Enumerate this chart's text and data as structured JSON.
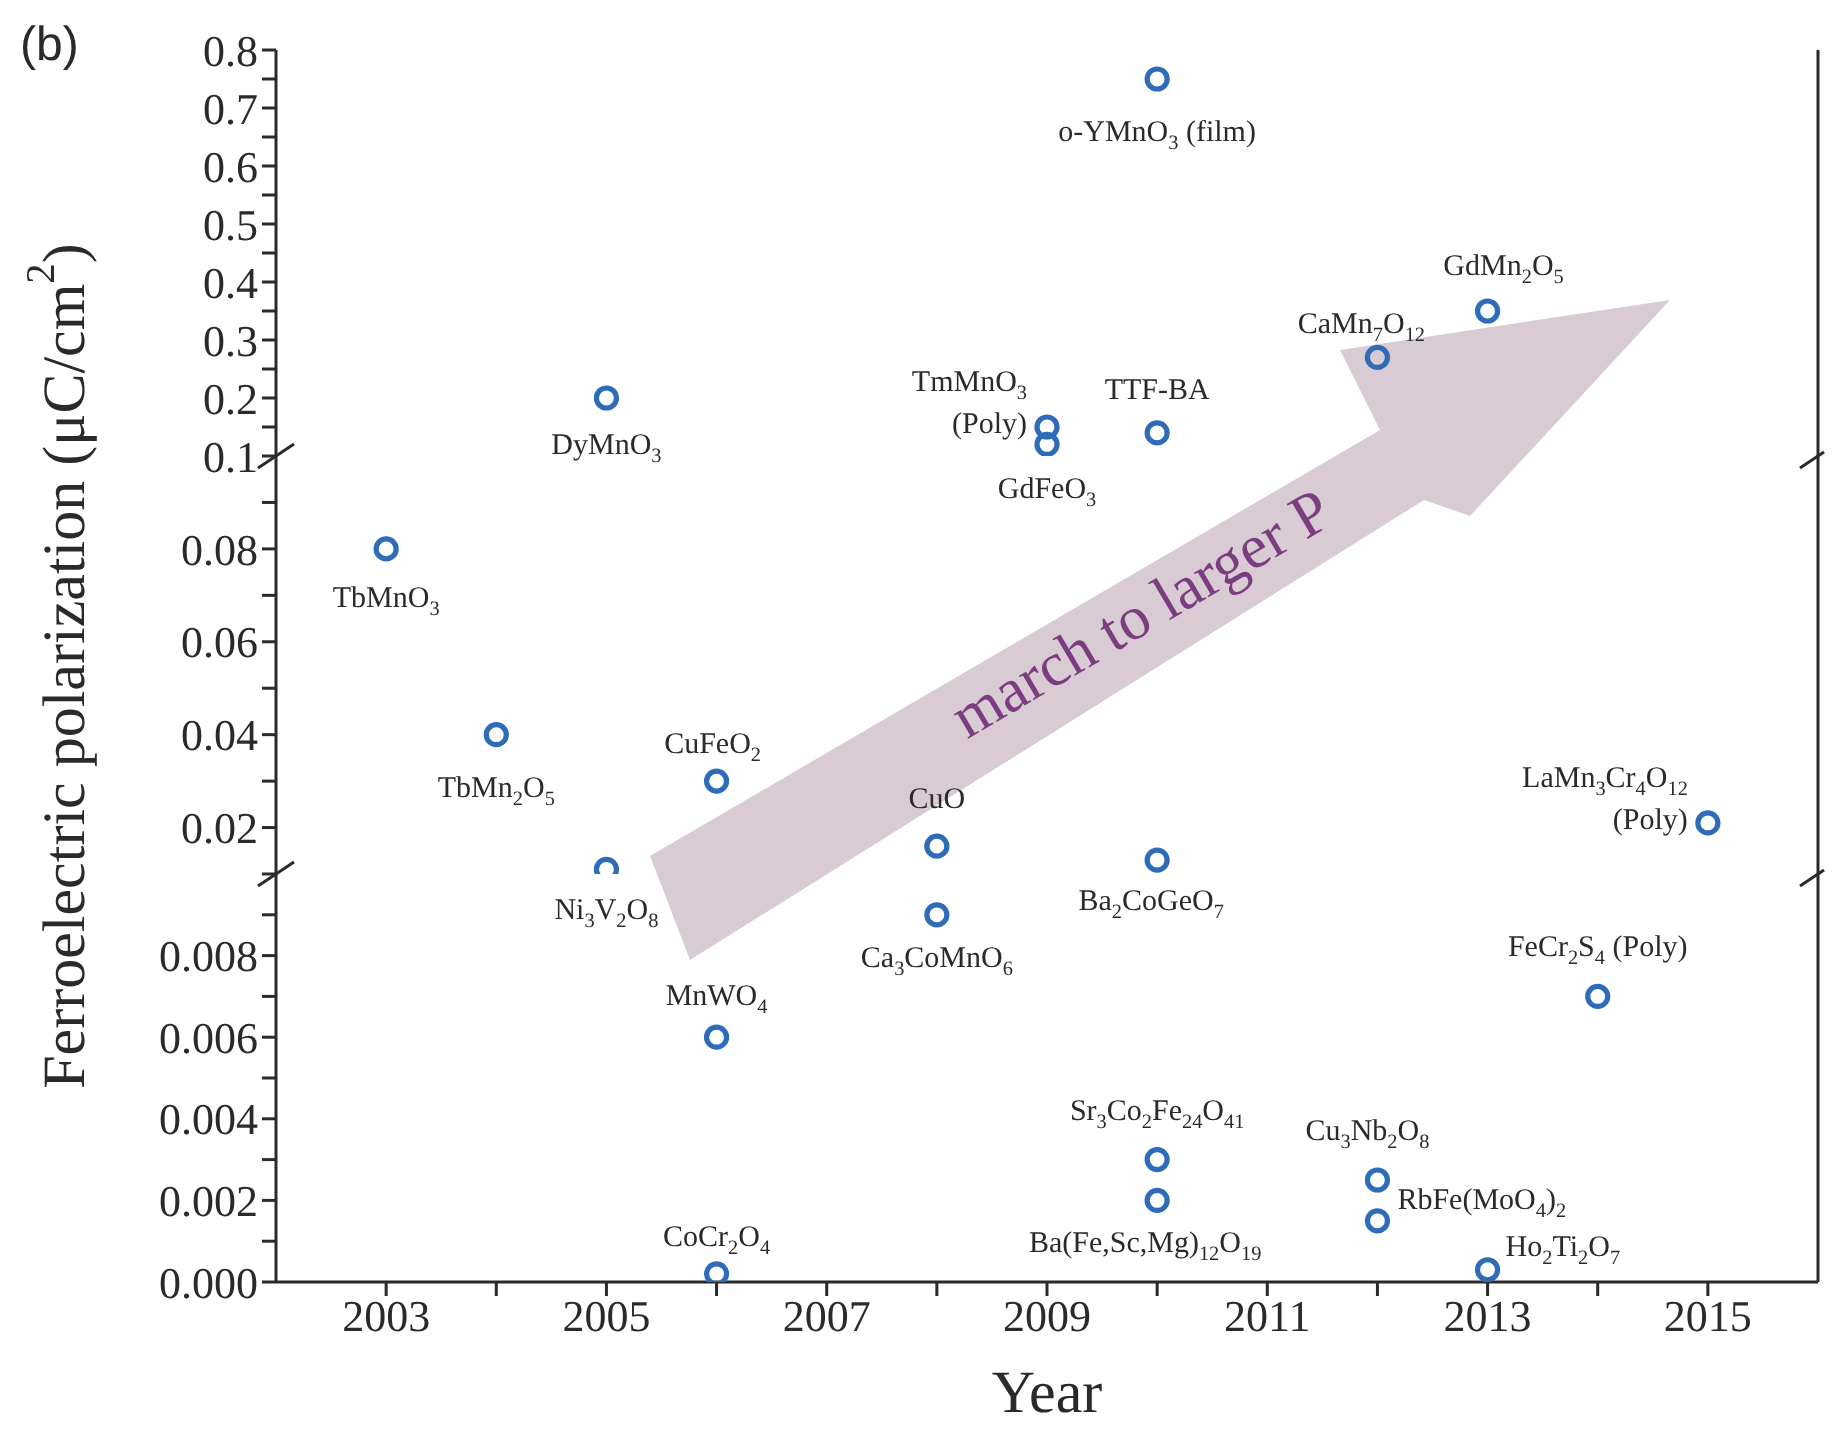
{
  "chart_data": [
    {
      "type": "scatter",
      "x": [
        2005,
        2009,
        2009,
        2010,
        2010,
        2012,
        2013
      ],
      "values": [
        0.2,
        0.15,
        0.12,
        0.75,
        0.14,
        0.27,
        0.35
      ],
      "color": "#2e6bb8",
      "marker": "circle",
      "xlim": [
        2002,
        2016
      ],
      "ylim": [
        0.1,
        0.8
      ],
      "yticks": [
        0.1,
        {
          "value": 0.15,
          "label": null
        },
        0.2,
        {
          "value": 0.25,
          "label": null
        },
        0.3,
        {
          "value": 0.35,
          "label": null
        },
        0.4,
        {
          "value": 0.45,
          "label": null
        },
        0.5,
        {
          "value": 0.55,
          "label": null
        },
        0.6,
        {
          "value": 0.65,
          "label": null
        },
        0.7,
        {
          "value": 0.75,
          "label": null
        },
        0.8
      ],
      "tick_labels": "y",
      "annotations": [
        "(b)",
        "march to larger P",
        {
          "text": "o-YMnO$_{3}$ (film)",
          "x": 2010,
          "y": 0.75
        },
        {
          "text": "DyMnO$_{3}$",
          "x": 2005,
          "y": 0.2
        },
        {
          "text": "TmMnO$_{3}$ (Poly)",
          "x": 2009,
          "y": 0.15
        },
        {
          "text": "GdFeO$_{3}$",
          "x": 2009,
          "y": 0.12
        },
        {
          "text": "TTF-BA",
          "x": 2010,
          "y": 0.14
        },
        {
          "text": "CaMn$_{7}$O$_{12}$",
          "x": 2012,
          "y": 0.27
        },
        {
          "text": "GdMn$_{2}$O$_{5}$",
          "x": 2013,
          "y": 0.35
        }
      ]
    },
    {
      "type": "scatter",
      "x": [
        2003,
        2004,
        2006,
        2005,
        2008,
        2010,
        2015
      ],
      "values": [
        0.08,
        0.04,
        0.03,
        0.011,
        0.016,
        0.013,
        0.021
      ],
      "color": "#2e6bb8",
      "marker": "circle",
      "xlim": [
        2002,
        2016
      ],
      "ylim": [
        0.01,
        0.1
      ],
      "yticks": [
        {
          "value": 0.01,
          "label": null
        },
        0.02,
        {
          "value": 0.03,
          "label": null
        },
        0.04,
        {
          "value": 0.05,
          "label": null
        },
        0.06,
        {
          "value": 0.07,
          "label": null
        },
        0.08,
        {
          "value": 0.09,
          "label": null
        }
      ],
      "tick_labels": "y",
      "ylabel": "Ferroelectric polarization (μC/cm$^{2}$)",
      "annotations": [
        {
          "text": "TbMnO$_{3}$",
          "x": 2003,
          "y": 0.08
        },
        {
          "text": "TbMn$_{2}$O$_{5}$",
          "x": 2004,
          "y": 0.04
        },
        {
          "text": "CuFeO$_{2}$",
          "x": 2006,
          "y": 0.03
        },
        {
          "text": "Ni$_{3}$V$_{2}$O$_{8}$",
          "x": 2005,
          "y": 0.011
        },
        {
          "text": "CuO",
          "x": 2008,
          "y": 0.016
        },
        {
          "text": "Ba$_{2}$CoGeO$_{7}$",
          "x": 2010,
          "y": 0.013
        },
        {
          "text": "LaMn$_{3}$Cr$_{4}$O$_{12}$ (Poly)",
          "x": 2015,
          "y": 0.021
        }
      ]
    },
    {
      "type": "scatter",
      "x": [
        2008,
        2006,
        2006,
        2014,
        2010,
        2010,
        2012,
        2012,
        2013
      ],
      "values": [
        0.009,
        0.006,
        0.0002,
        0.007,
        0.003,
        0.002,
        0.0025,
        0.0015,
        0.0003
      ],
      "color": "#2e6bb8",
      "marker": "circle",
      "xlim": [
        2002,
        2016
      ],
      "ylim": [
        0,
        0.01
      ],
      "xticks": [
        2003,
        {
          "value": 2004,
          "label": null
        },
        2005,
        {
          "value": 2006,
          "label": null
        },
        2007,
        {
          "value": 2008,
          "label": null
        },
        2009,
        {
          "value": 2010,
          "label": null
        },
        2011,
        {
          "value": 2012,
          "label": null
        },
        2013,
        {
          "value": 2014,
          "label": null
        },
        2015
      ],
      "yticks": [
        {
          "value": 0,
          "label": "0.000"
        },
        {
          "value": 0.001,
          "label": null
        },
        0.002,
        {
          "value": 0.003,
          "label": null
        },
        0.004,
        {
          "value": 0.005,
          "label": null
        },
        0.006,
        {
          "value": 0.007,
          "label": null
        },
        0.008,
        {
          "value": 0.009,
          "label": null
        }
      ],
      "xlabel": "Year",
      "annotations": [
        {
          "text": "Ca$_{3}$CoMnO$_{6}$",
          "x": 2008,
          "y": 0.009
        },
        {
          "text": "MnWO$_{4}$",
          "x": 2006,
          "y": 0.006
        },
        {
          "text": "CoCr$_{2}$O$_{4}$",
          "x": 2006,
          "y": 0.0002
        },
        {
          "text": "FeCr$_{2}$S$_{4}$ (Poly)",
          "x": 2014,
          "y": 0.007
        },
        {
          "text": "Sr$_{3}$Co$_{2}$Fe$_{24}$O$_{41}$",
          "x": 2010,
          "y": 0.003
        },
        {
          "text": "Ba(Fe,Sc,Mg)$_{12}$O$_{19}$",
          "x": 2010,
          "y": 0.002
        },
        {
          "text": "Cu$_{3}$Nb$_{2}$O$_{8}$",
          "x": 2012,
          "y": 0.0025
        },
        {
          "text": "RbFe(MoO$_{4}$)$_{2}$",
          "x": 2012,
          "y": 0.0015
        },
        {
          "text": "Ho$_{2}$Ti$_{2}$O$_{7}$",
          "x": 2013,
          "y": 0.0003
        }
      ]
    }
  ]
}
